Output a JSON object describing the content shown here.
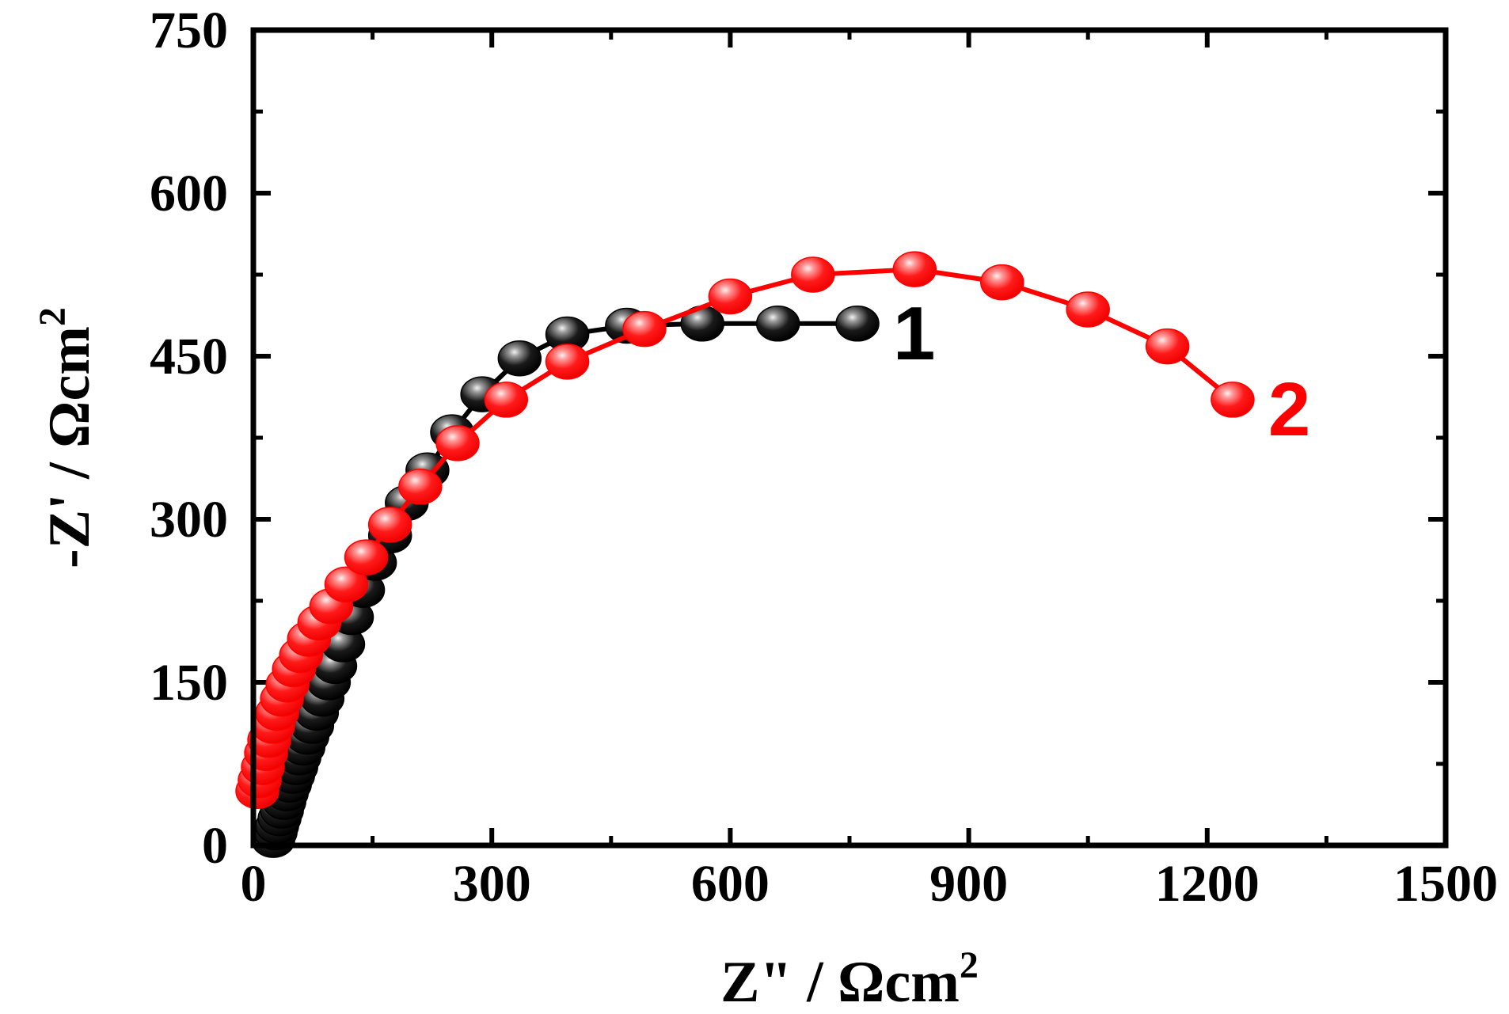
{
  "chart_data": {
    "type": "scatter",
    "title": "",
    "xlabel": {
      "main": "Z\" / Ωcm",
      "sup": "2"
    },
    "ylabel": {
      "main": "-Z' / Ωcm",
      "sup": "2"
    },
    "xlim": [
      0,
      1500
    ],
    "ylim": [
      0,
      750
    ],
    "xticks": [
      "0",
      "300",
      "600",
      "900",
      "1200",
      "1500"
    ],
    "yticks": [
      "0",
      "150",
      "300",
      "450",
      "600",
      "750"
    ],
    "grid": false,
    "series": [
      {
        "name": "1",
        "color": "#000000",
        "highlight": "#d0d0d0",
        "x": [
          25,
          28,
          30,
          33,
          36,
          39,
          42,
          46,
          50,
          54,
          58,
          63,
          68,
          74,
          80,
          87,
          95,
          103,
          113,
          124,
          138,
          153,
          172,
          193,
          219,
          250,
          288,
          335,
          395,
          470,
          565,
          660,
          760
        ],
        "y": [
          5,
          12,
          18,
          25,
          32,
          40,
          48,
          56,
          64,
          72,
          81,
          90,
          100,
          110,
          122,
          135,
          150,
          165,
          185,
          210,
          235,
          260,
          285,
          315,
          345,
          380,
          415,
          448,
          470,
          478,
          480,
          480,
          480
        ]
      },
      {
        "name": "2",
        "color": "#ff0000",
        "highlight": "#ffd0d0",
        "x": [
          5,
          8,
          12,
          16,
          20,
          25,
          30,
          36,
          43,
          51,
          60,
          70,
          83,
          98,
          117,
          142,
          172,
          210,
          257,
          318,
          395,
          492,
          600,
          704,
          832,
          942,
          1050,
          1150,
          1232
        ],
        "y": [
          50,
          60,
          72,
          85,
          97,
          110,
          122,
          135,
          148,
          162,
          175,
          190,
          205,
          220,
          240,
          265,
          295,
          330,
          370,
          410,
          445,
          475,
          505,
          525,
          530,
          518,
          493,
          459,
          410
        ]
      }
    ],
    "annotations": [
      {
        "text": "1",
        "series": 0
      },
      {
        "text": "2",
        "series": 1
      }
    ]
  }
}
